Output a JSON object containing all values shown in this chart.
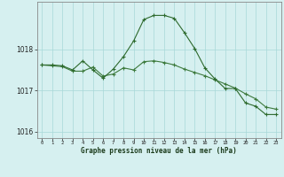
{
  "x": [
    0,
    1,
    2,
    3,
    4,
    5,
    6,
    7,
    8,
    9,
    10,
    11,
    12,
    13,
    14,
    15,
    16,
    17,
    18,
    19,
    20,
    21,
    22,
    23
  ],
  "line1": [
    1017.62,
    1017.62,
    1017.6,
    1017.5,
    1017.72,
    1017.5,
    1017.3,
    1017.52,
    1017.82,
    1018.2,
    1018.72,
    1018.82,
    1018.82,
    1018.75,
    1018.4,
    1018.02,
    1017.55,
    1017.28,
    1017.05,
    1017.05,
    1016.7,
    1016.62,
    1016.42,
    1016.42
  ],
  "line2": [
    1017.62,
    1017.6,
    1017.58,
    1017.47,
    1017.47,
    1017.57,
    1017.35,
    1017.4,
    1017.55,
    1017.5,
    1017.7,
    1017.72,
    1017.68,
    1017.62,
    1017.52,
    1017.44,
    1017.36,
    1017.26,
    1017.16,
    1017.06,
    1016.92,
    1016.8,
    1016.6,
    1016.55
  ],
  "ylim": [
    1015.85,
    1019.15
  ],
  "yticks": [
    1016,
    1017,
    1018
  ],
  "xticks": [
    0,
    1,
    2,
    3,
    4,
    5,
    6,
    7,
    8,
    9,
    10,
    11,
    12,
    13,
    14,
    15,
    16,
    17,
    18,
    19,
    20,
    21,
    22,
    23
  ],
  "xlabel": "Graphe pression niveau de la mer (hPa)",
  "line1_color": "#2d6a2d",
  "line2_color": "#3d7a3d",
  "bg_color": "#d6f0f0",
  "grid_color": "#a8d8d8",
  "axis_color": "#888888",
  "linewidth": 0.8,
  "markersize": 3.0
}
